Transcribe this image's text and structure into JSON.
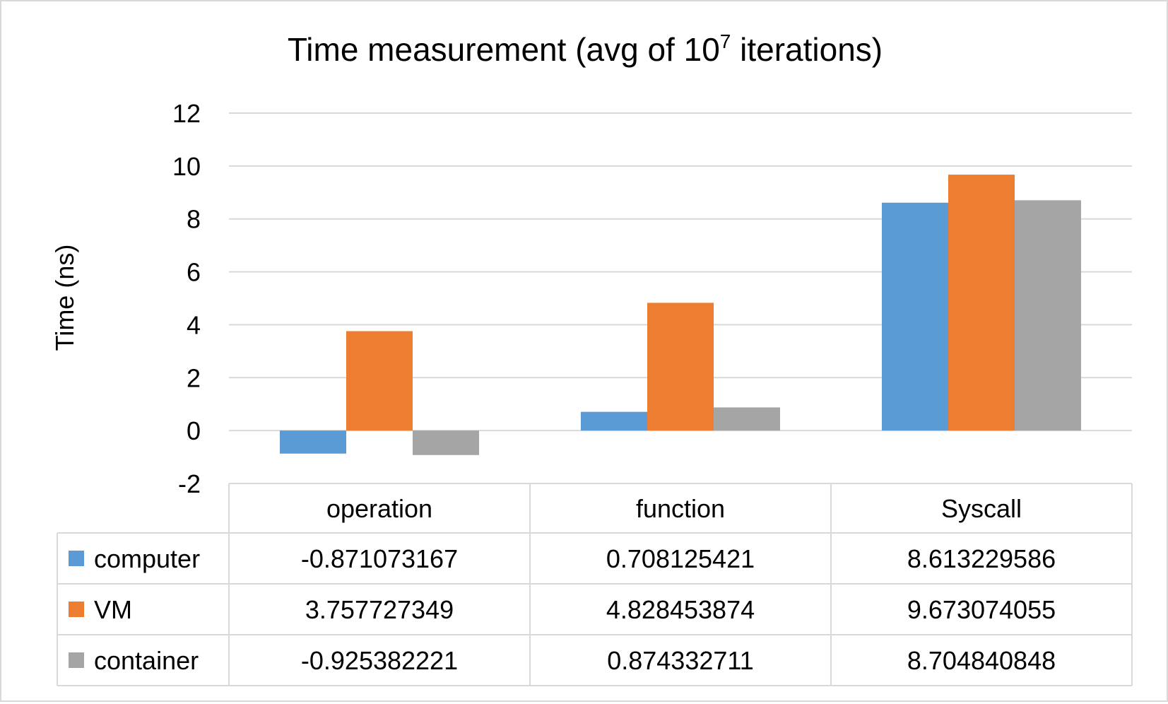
{
  "chart_data": {
    "type": "bar",
    "title_main": "Time measurement (avg of 10",
    "title_sup": "7",
    "title_tail": " iterations)",
    "ylabel": "Time (ns)",
    "xlabel": "",
    "ylim": [
      -2,
      12
    ],
    "yticks": [
      12,
      10,
      8,
      6,
      4,
      2,
      0,
      -2
    ],
    "grid": true,
    "legend": "data-table",
    "categories": [
      "operation",
      "function",
      "Syscall"
    ],
    "series": [
      {
        "name": "computer",
        "color": "#5b9bd5",
        "values": [
          -0.871073167,
          0.708125421,
          8.613229586
        ],
        "labels": [
          "-0.871073167",
          "0.708125421",
          "8.613229586"
        ]
      },
      {
        "name": "VM",
        "color": "#ed7d31",
        "values": [
          3.757727349,
          4.828453874,
          9.673074055
        ],
        "labels": [
          "3.757727349",
          "4.828453874",
          "9.673074055"
        ]
      },
      {
        "name": "container",
        "color": "#a5a5a5",
        "values": [
          -0.925382221,
          0.874332711,
          8.704840848
        ],
        "labels": [
          "-0.925382221",
          "0.874332711",
          "8.704840848"
        ]
      }
    ]
  }
}
